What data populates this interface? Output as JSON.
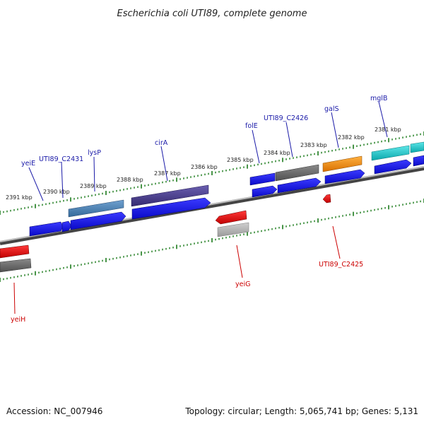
{
  "title": "Escherichia coli UTI89, complete genome",
  "footer": {
    "accession": "Accession: NC_007946",
    "topology": "Topology: circular; Length: 5,065,741 bp; Genes: 5,131"
  },
  "colors": {
    "blue_gene": "#1010e0",
    "red_gene": "#e00000",
    "gray_gene": "#6a6a6a",
    "steel_gene": "#4a7fb0",
    "purple_gene": "#4a3f8c",
    "orange_gene": "#f08c00",
    "cyan_gene": "#14c4c8",
    "tick": "#1a7a1a",
    "label_blue": "#1a1aa8",
    "label_red": "#cc0000"
  },
  "kbp_labels": [
    "2391 kbp",
    "2390 kbp",
    "2389 kbp",
    "2388 kbp",
    "2387 kbp",
    "2386 kbp",
    "2385 kbp",
    "2384 kbp",
    "2383 kbp",
    "2382 kbp",
    "2381 kbp"
  ],
  "genes_top": [
    "yeiE",
    "UTI89_C2431",
    "lysP",
    "cirA",
    "folE",
    "UTI89_C2426",
    "galS",
    "mglB"
  ],
  "genes_bottom": [
    "yeiH",
    "yeiG",
    "UTI89_C2425"
  ]
}
